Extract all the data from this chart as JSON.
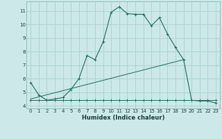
{
  "xlabel": "Humidex (Indice chaleur)",
  "background_color": "#cce8e8",
  "grid_color": "#aacfcf",
  "line_color": "#1a6b5e",
  "xmin": -0.5,
  "xmax": 23.5,
  "ymin": 3.8,
  "ymax": 11.7,
  "yticks": [
    4,
    5,
    6,
    7,
    8,
    9,
    10,
    11
  ],
  "xticks": [
    0,
    1,
    2,
    3,
    4,
    5,
    6,
    7,
    8,
    9,
    10,
    11,
    12,
    13,
    14,
    15,
    16,
    17,
    18,
    19,
    20,
    21,
    22,
    23
  ],
  "series1_x": [
    0,
    1,
    2,
    3,
    4,
    5,
    6,
    7,
    8,
    9,
    10,
    11,
    12,
    13,
    14,
    15,
    16,
    17,
    18,
    19,
    20,
    21,
    22,
    23
  ],
  "series1_y": [
    5.7,
    4.8,
    4.4,
    4.5,
    4.6,
    5.2,
    6.0,
    7.7,
    7.4,
    8.7,
    10.9,
    11.3,
    10.8,
    10.75,
    10.75,
    9.9,
    10.5,
    9.3,
    8.3,
    7.4,
    4.4,
    4.35,
    4.35,
    4.2
  ],
  "series2_full_x": [
    0,
    1,
    2,
    3,
    4,
    5,
    6,
    7,
    8,
    9,
    10,
    11,
    12,
    13,
    14,
    15,
    16,
    17,
    18,
    19,
    20,
    21,
    22,
    23
  ],
  "series2_full_y": [
    4.4,
    4.4,
    4.4,
    4.4,
    4.4,
    4.4,
    4.4,
    4.4,
    4.4,
    4.4,
    4.4,
    4.4,
    4.4,
    4.4,
    4.4,
    4.4,
    4.4,
    4.4,
    4.4,
    4.4,
    4.4,
    4.4,
    4.4,
    4.4
  ],
  "series3_x": [
    0,
    19
  ],
  "series3_y": [
    4.5,
    7.4
  ],
  "series4_x": [
    0,
    23
  ],
  "series4_y": [
    4.4,
    4.2
  ]
}
